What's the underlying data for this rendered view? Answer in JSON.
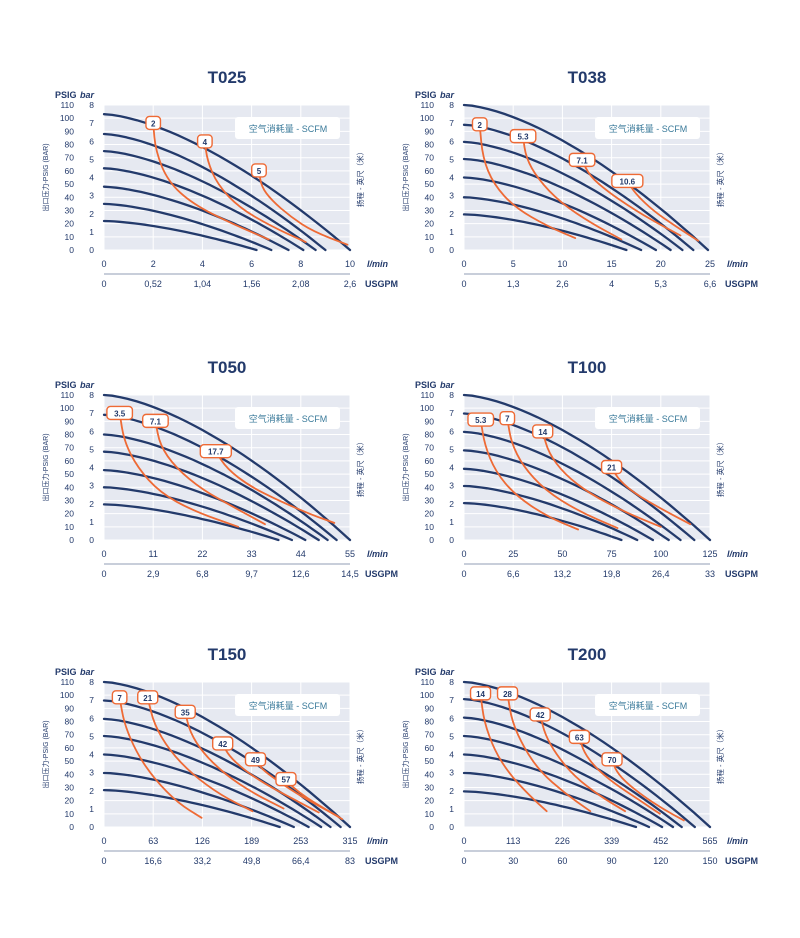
{
  "labels": {
    "psig": "PSIG",
    "bar": "bar",
    "y_axis_left": "出口压力-PSIG (BAR)",
    "y_axis_right": "扬程 - 英尺（米）",
    "air_note": "空气消耗量 - SCFM",
    "lmin": "l/min",
    "usgpm": "USGPM"
  },
  "colors": {
    "curve": "#233a6b",
    "air_curve": "#ee6a35",
    "plot_bg": "#e6e9f1",
    "grid": "#ffffff",
    "text": "#233a6b",
    "air_note_text": "#3a7a9a"
  },
  "chart_data": [
    {
      "type": "line",
      "title": "T025",
      "psig_ticks": [
        "110",
        "100",
        "90",
        "80",
        "70",
        "60",
        "50",
        "40",
        "30",
        "20",
        "10",
        "0"
      ],
      "bar_ticks": [
        "8",
        "7",
        "6",
        "5",
        "4",
        "3",
        "2",
        "1",
        "0"
      ],
      "lmin_ticks": [
        "0",
        "2",
        "4",
        "6",
        "8",
        "10"
      ],
      "usgpm_ticks": [
        "0",
        "0,52",
        "1,04",
        "1,56",
        "2,08",
        "2,6"
      ],
      "xlim": [
        0,
        10
      ],
      "ylim": [
        0,
        110
      ],
      "pump_curves": [
        {
          "x": [
            0,
            6.2
          ],
          "y": [
            22,
            0
          ]
        },
        {
          "x": [
            0,
            6.8
          ],
          "y": [
            35,
            0
          ]
        },
        {
          "x": [
            0,
            7.5
          ],
          "y": [
            48,
            0
          ]
        },
        {
          "x": [
            0,
            8.1
          ],
          "y": [
            62,
            0
          ]
        },
        {
          "x": [
            0,
            8.6
          ],
          "y": [
            75,
            0
          ]
        },
        {
          "x": [
            0,
            9.0
          ],
          "y": [
            88,
            0
          ]
        },
        {
          "x": [
            0,
            10
          ],
          "y": [
            103,
            0
          ]
        }
      ],
      "air_curves": [
        {
          "label": "2",
          "x": [
            2.0,
            2.1,
            2.6,
            3.6,
            5.2,
            6.7
          ],
          "y": [
            96,
            75,
            52,
            35,
            20,
            8
          ]
        },
        {
          "label": "4",
          "x": [
            4.1,
            4.2,
            4.6,
            5.5,
            6.8,
            8.2
          ],
          "y": [
            82,
            68,
            50,
            32,
            18,
            6
          ]
        },
        {
          "label": "5",
          "x": [
            6.3,
            6.4,
            6.8,
            7.6,
            8.5,
            9.9
          ],
          "y": [
            60,
            48,
            38,
            25,
            14,
            4
          ]
        }
      ]
    },
    {
      "type": "line",
      "title": "T038",
      "psig_ticks": [
        "110",
        "100",
        "90",
        "80",
        "70",
        "60",
        "50",
        "40",
        "30",
        "20",
        "10",
        "0"
      ],
      "bar_ticks": [
        "8",
        "7",
        "6",
        "5",
        "4",
        "3",
        "2",
        "1",
        "0"
      ],
      "lmin_ticks": [
        "0",
        "5",
        "10",
        "15",
        "20",
        "25"
      ],
      "usgpm_ticks": [
        "0",
        "1,3",
        "2,6",
        "4",
        "5,3",
        "6,6"
      ],
      "xlim": [
        0,
        25
      ],
      "ylim": [
        0,
        110
      ],
      "pump_curves": [
        {
          "x": [
            0,
            16.5
          ],
          "y": [
            27,
            0
          ]
        },
        {
          "x": [
            0,
            18
          ],
          "y": [
            40,
            0
          ]
        },
        {
          "x": [
            0,
            19.5
          ],
          "y": [
            55,
            0
          ]
        },
        {
          "x": [
            0,
            21
          ],
          "y": [
            69,
            0
          ]
        },
        {
          "x": [
            0,
            22.2
          ],
          "y": [
            82,
            0
          ]
        },
        {
          "x": [
            0,
            23.3
          ],
          "y": [
            95,
            0
          ]
        },
        {
          "x": [
            0,
            24.8
          ],
          "y": [
            110,
            0
          ]
        }
      ],
      "air_curves": [
        {
          "label": "2",
          "x": [
            1.6,
            1.9,
            3.0,
            5.2,
            8.5,
            11.3
          ],
          "y": [
            95,
            70,
            50,
            32,
            18,
            9
          ]
        },
        {
          "label": "5.3",
          "x": [
            6.0,
            6.3,
            7.5,
            9.8,
            13.0,
            16.0
          ],
          "y": [
            86,
            70,
            54,
            36,
            20,
            8
          ]
        },
        {
          "label": "7.1",
          "x": [
            12.0,
            12.8,
            14.5,
            17.0,
            19.5,
            22.0
          ],
          "y": [
            68,
            56,
            45,
            32,
            21,
            11
          ]
        },
        {
          "label": "10.6",
          "x": [
            16.6,
            17.5,
            19.2,
            21.5,
            23.8
          ],
          "y": [
            52,
            42,
            30,
            18,
            7
          ]
        }
      ]
    },
    {
      "type": "line",
      "title": "T050",
      "psig_ticks": [
        "110",
        "100",
        "90",
        "80",
        "70",
        "60",
        "50",
        "40",
        "30",
        "20",
        "10",
        "0"
      ],
      "bar_ticks": [
        "8",
        "7",
        "6",
        "5",
        "4",
        "3",
        "2",
        "1",
        "0"
      ],
      "lmin_ticks": [
        "0",
        "11",
        "22",
        "33",
        "44",
        "55"
      ],
      "usgpm_ticks": [
        "0",
        "2,9",
        "6,8",
        "9,7",
        "12,6",
        "14,5"
      ],
      "xlim": [
        0,
        55
      ],
      "ylim": [
        0,
        110
      ],
      "pump_curves": [
        {
          "x": [
            0,
            39
          ],
          "y": [
            27,
            0
          ]
        },
        {
          "x": [
            0,
            42
          ],
          "y": [
            40,
            0
          ]
        },
        {
          "x": [
            0,
            45
          ],
          "y": [
            53,
            0
          ]
        },
        {
          "x": [
            0,
            48
          ],
          "y": [
            67,
            0
          ]
        },
        {
          "x": [
            0,
            50
          ],
          "y": [
            80,
            0
          ]
        },
        {
          "x": [
            0,
            52
          ],
          "y": [
            95,
            0
          ]
        },
        {
          "x": [
            0,
            55
          ],
          "y": [
            110,
            0
          ]
        }
      ],
      "air_curves": [
        {
          "label": "3.5",
          "x": [
            3.5,
            4.5,
            7.5,
            12.5,
            20.0,
            30.0
          ],
          "y": [
            96,
            75,
            55,
            36,
            22,
            10
          ]
        },
        {
          "label": "7.1",
          "x": [
            11.5,
            12.5,
            16.0,
            22.0,
            29.5,
            36.0
          ],
          "y": [
            90,
            72,
            55,
            38,
            24,
            12
          ]
        },
        {
          "label": "17.7",
          "x": [
            25.0,
            27.5,
            32.5,
            39.0,
            46.5,
            51.5
          ],
          "y": [
            67,
            54,
            41,
            30,
            19,
            13
          ]
        }
      ]
    },
    {
      "type": "line",
      "title": "T100",
      "psig_ticks": [
        "110",
        "100",
        "90",
        "80",
        "70",
        "60",
        "50",
        "40",
        "30",
        "20",
        "10",
        "0"
      ],
      "bar_ticks": [
        "8",
        "7",
        "6",
        "5",
        "4",
        "3",
        "2",
        "1",
        "0"
      ],
      "lmin_ticks": [
        "0",
        "25",
        "50",
        "75",
        "100",
        "125"
      ],
      "usgpm_ticks": [
        "0",
        "6,6",
        "13,2",
        "19,8",
        "26,4",
        "33"
      ],
      "xlim": [
        0,
        125
      ],
      "ylim": [
        0,
        110
      ],
      "pump_curves": [
        {
          "x": [
            0,
            80
          ],
          "y": [
            28,
            0
          ]
        },
        {
          "x": [
            0,
            88
          ],
          "y": [
            41,
            0
          ]
        },
        {
          "x": [
            0,
            96
          ],
          "y": [
            54,
            0
          ]
        },
        {
          "x": [
            0,
            104
          ],
          "y": [
            68,
            0
          ]
        },
        {
          "x": [
            0,
            110
          ],
          "y": [
            82,
            0
          ]
        },
        {
          "x": [
            0,
            117
          ],
          "y": [
            96,
            0
          ]
        },
        {
          "x": [
            0,
            125
          ],
          "y": [
            110,
            0
          ]
        }
      ],
      "air_curves": [
        {
          "label": "5.3",
          "x": [
            8.5,
            10.5,
            16.0,
            26.0,
            42.0,
            58.0
          ],
          "y": [
            91,
            72,
            52,
            34,
            18,
            8
          ]
        },
        {
          "label": "7",
          "x": [
            22.0,
            24.0,
            30.0,
            41.0,
            58.0,
            78.0
          ],
          "y": [
            92,
            74,
            56,
            38,
            22,
            9
          ]
        },
        {
          "label": "14",
          "x": [
            40.0,
            43.0,
            51.0,
            64.0,
            82.0,
            100.0
          ],
          "y": [
            82,
            66,
            50,
            35,
            21,
            10
          ]
        },
        {
          "label": "21",
          "x": [
            75.0,
            79.0,
            88.0,
            101.0,
            115.0
          ],
          "y": [
            55,
            45,
            34,
            23,
            12
          ]
        }
      ]
    },
    {
      "type": "line",
      "title": "T150",
      "psig_ticks": [
        "110",
        "100",
        "90",
        "80",
        "70",
        "60",
        "50",
        "40",
        "30",
        "20",
        "10",
        "0"
      ],
      "bar_ticks": [
        "8",
        "7",
        "6",
        "5",
        "4",
        "3",
        "2",
        "1",
        "0"
      ],
      "lmin_ticks": [
        "0",
        "63",
        "126",
        "189",
        "253",
        "315"
      ],
      "usgpm_ticks": [
        "0",
        "16,6",
        "33,2",
        "49,8",
        "66,4",
        "83"
      ],
      "xlim": [
        0,
        315
      ],
      "ylim": [
        0,
        110
      ],
      "pump_curves": [
        {
          "x": [
            0,
            225
          ],
          "y": [
            28,
            0
          ]
        },
        {
          "x": [
            0,
            243
          ],
          "y": [
            41,
            0
          ]
        },
        {
          "x": [
            0,
            262
          ],
          "y": [
            55,
            0
          ]
        },
        {
          "x": [
            0,
            278
          ],
          "y": [
            69,
            0
          ]
        },
        {
          "x": [
            0,
            290
          ],
          "y": [
            82,
            0
          ]
        },
        {
          "x": [
            0,
            303
          ],
          "y": [
            96,
            0
          ]
        },
        {
          "x": [
            0,
            315
          ],
          "y": [
            110,
            0
          ]
        }
      ],
      "air_curves": [
        {
          "label": "7",
          "x": [
            20,
            26,
            42,
            65,
            95,
            125
          ],
          "y": [
            98,
            78,
            56,
            36,
            18,
            7
          ]
        },
        {
          "label": "21",
          "x": [
            56,
            64,
            84,
            113,
            150,
            190
          ],
          "y": [
            98,
            78,
            58,
            40,
            24,
            12
          ]
        },
        {
          "label": "35",
          "x": [
            104,
            110,
            127,
            155,
            190,
            230
          ],
          "y": [
            87,
            72,
            56,
            40,
            26,
            14
          ]
        },
        {
          "label": "42",
          "x": [
            152,
            160,
            178,
            205,
            240,
            275
          ],
          "y": [
            63,
            54,
            44,
            33,
            22,
            11
          ]
        },
        {
          "label": "49",
          "x": [
            194,
            202,
            220,
            245,
            275,
            300
          ],
          "y": [
            51,
            44,
            36,
            26,
            16,
            8
          ]
        },
        {
          "label": "57",
          "x": [
            233,
            242,
            260,
            282,
            305
          ],
          "y": [
            36,
            30,
            22,
            14,
            6
          ]
        }
      ]
    },
    {
      "type": "line",
      "title": "T200",
      "psig_ticks": [
        "110",
        "100",
        "90",
        "80",
        "70",
        "60",
        "50",
        "40",
        "30",
        "20",
        "10",
        "0"
      ],
      "bar_ticks": [
        "8",
        "7",
        "6",
        "5",
        "4",
        "3",
        "2",
        "1",
        "0"
      ],
      "lmin_ticks": [
        "0",
        "113",
        "226",
        "339",
        "452",
        "565"
      ],
      "usgpm_ticks": [
        "0",
        "30",
        "60",
        "90",
        "120",
        "150"
      ],
      "xlim": [
        0,
        565
      ],
      "ylim": [
        0,
        110
      ],
      "pump_curves": [
        {
          "x": [
            0,
            395
          ],
          "y": [
            27,
            0
          ]
        },
        {
          "x": [
            0,
            425
          ],
          "y": [
            41,
            0
          ]
        },
        {
          "x": [
            0,
            455
          ],
          "y": [
            55,
            0
          ]
        },
        {
          "x": [
            0,
            480
          ],
          "y": [
            69,
            0
          ]
        },
        {
          "x": [
            0,
            500
          ],
          "y": [
            83,
            0
          ]
        },
        {
          "x": [
            0,
            530
          ],
          "y": [
            97,
            0
          ]
        },
        {
          "x": [
            0,
            565
          ],
          "y": [
            110,
            0
          ]
        }
      ],
      "air_curves": [
        {
          "label": "14",
          "x": [
            38,
            46,
            70,
            105,
            150,
            190
          ],
          "y": [
            101,
            80,
            58,
            40,
            24,
            12
          ]
        },
        {
          "label": "28",
          "x": [
            100,
            110,
            138,
            175,
            230,
            290
          ],
          "y": [
            101,
            80,
            60,
            42,
            26,
            12
          ]
        },
        {
          "label": "42",
          "x": [
            175,
            186,
            214,
            255,
            310,
            370
          ],
          "y": [
            85,
            70,
            54,
            38,
            24,
            12
          ]
        },
        {
          "label": "63",
          "x": [
            265,
            275,
            302,
            345,
            400,
            450
          ],
          "y": [
            68,
            57,
            45,
            33,
            21,
            10
          ]
        },
        {
          "label": "70",
          "x": [
            340,
            350,
            375,
            410,
            455,
            505
          ],
          "y": [
            51,
            42,
            33,
            24,
            14,
            5
          ]
        }
      ]
    }
  ]
}
